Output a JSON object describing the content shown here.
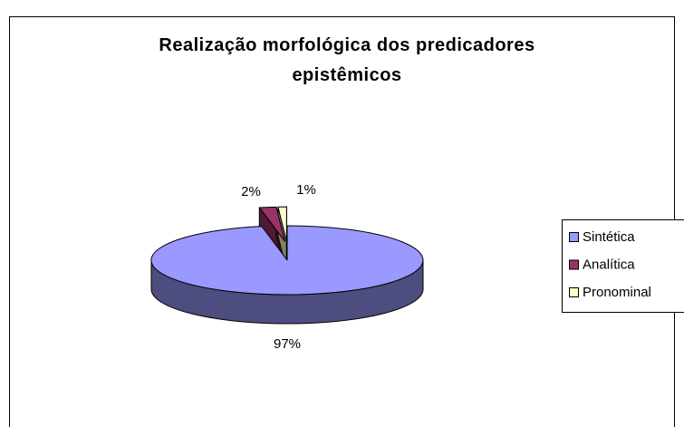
{
  "chart_data": {
    "type": "pie3d",
    "title": "Realização morfológica dos predicadores epistêmicos",
    "categories": [
      "Sintética",
      "Analítica",
      "Pronominal"
    ],
    "values": [
      97,
      2,
      1
    ],
    "value_labels": [
      "97%",
      "2%",
      "1%"
    ],
    "colors": [
      "#9999ff",
      "#993366",
      "#ffffcc"
    ],
    "exploded": [
      false,
      true,
      true
    ],
    "legend": "right"
  }
}
